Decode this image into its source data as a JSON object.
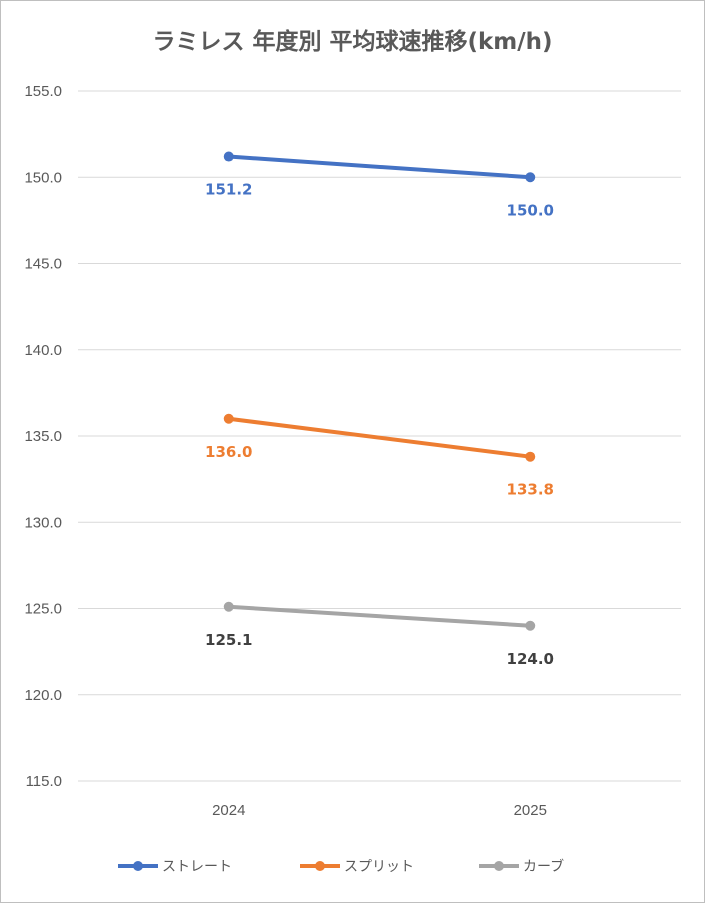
{
  "chart_data": {
    "type": "line",
    "title": "ラミレス 年度別 平均球速推移(km/h)",
    "xlabel": "",
    "ylabel": "",
    "categories": [
      "2024",
      "2025"
    ],
    "ylim": [
      115.0,
      155.0
    ],
    "yticks": [
      "115.0",
      "120.0",
      "125.0",
      "130.0",
      "135.0",
      "140.0",
      "145.0",
      "150.0",
      "155.0"
    ],
    "grid": true,
    "legend": "bottom",
    "series": [
      {
        "name": "ストレート",
        "values": [
          151.2,
          150.0
        ],
        "labels": [
          "151.2",
          "150.0"
        ],
        "color": "#4472c4"
      },
      {
        "name": "スプリット",
        "values": [
          136.0,
          133.8
        ],
        "labels": [
          "136.0",
          "133.8"
        ],
        "color": "#ed7d31"
      },
      {
        "name": "カーブ",
        "values": [
          125.1,
          124.0
        ],
        "labels": [
          "125.1",
          "124.0"
        ],
        "color": "#a5a5a5",
        "label_color": "#404040"
      }
    ]
  }
}
